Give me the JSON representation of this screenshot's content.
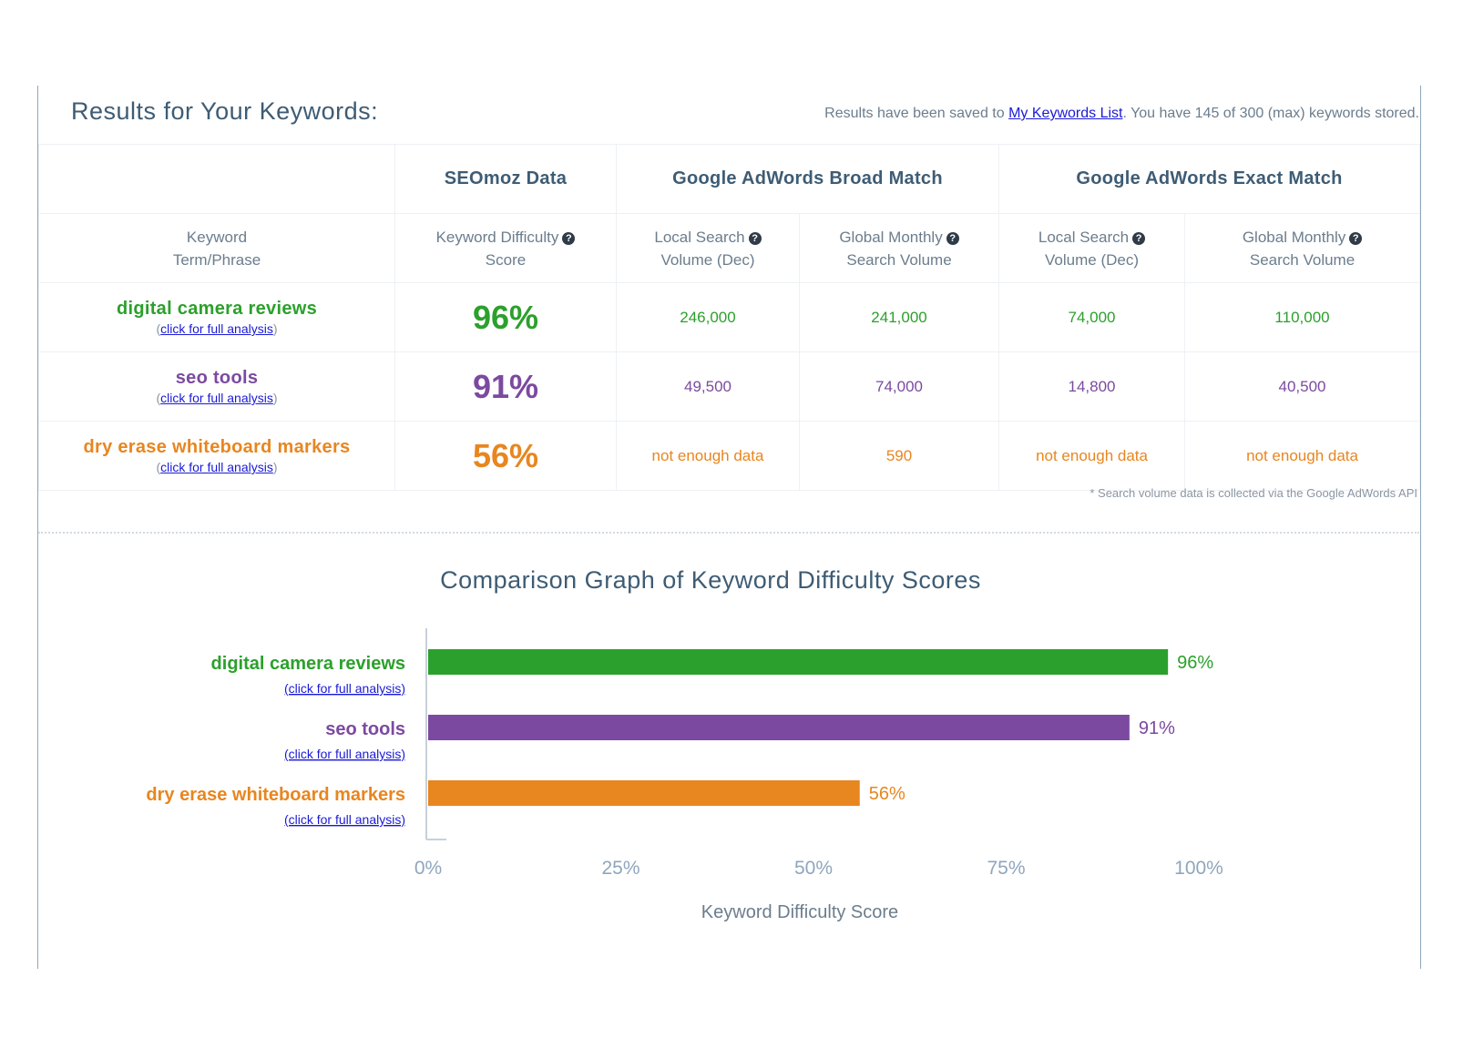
{
  "header": {
    "title": "Results for Your Keywords:",
    "saved_prefix": "Results have been saved to",
    "saved_link": "My Keywords List",
    "saved_suffix": ". You have 145 of 300 (max) keywords stored."
  },
  "table": {
    "groups": [
      "SEOmoz Data",
      "Google AdWords Broad Match",
      "Google AdWords Exact Match"
    ],
    "columns": {
      "keyword": [
        "Keyword",
        "Term/Phrase"
      ],
      "difficulty": [
        "Keyword Difficulty",
        "Score"
      ],
      "broad_local": [
        "Local Search",
        "Volume (Dec)"
      ],
      "broad_global": [
        "Global Monthly",
        "Search Volume"
      ],
      "exact_local": [
        "Local Search",
        "Volume (Dec)"
      ],
      "exact_global": [
        "Global Monthly",
        "Search Volume"
      ]
    },
    "help_icon_glyph": "?",
    "analysis_link": "click for full analysis",
    "rows": [
      {
        "keyword": "digital camera reviews",
        "score": "96%",
        "broad_local": "246,000",
        "broad_global": "241,000",
        "exact_local": "74,000",
        "exact_global": "110,000",
        "color": "#2ca02c"
      },
      {
        "keyword": "seo tools",
        "score": "91%",
        "broad_local": "49,500",
        "broad_global": "74,000",
        "exact_local": "14,800",
        "exact_global": "40,500",
        "color": "#7b4aa0"
      },
      {
        "keyword": "dry erase whiteboard markers",
        "score": "56%",
        "broad_local": "not enough data",
        "broad_global": "590",
        "exact_local": "not enough data",
        "exact_global": "not enough data",
        "color": "#e8861f"
      }
    ],
    "footnote": "* Search volume data is collected via the Google AdWords API"
  },
  "graph": {
    "title": "Comparison Graph of Keyword Difficulty Scores"
  },
  "chart_data": {
    "type": "bar",
    "orientation": "horizontal",
    "categories": [
      "digital camera reviews",
      "seo tools",
      "dry erase whiteboard markers"
    ],
    "values": [
      96,
      91,
      56
    ],
    "value_labels": [
      "96%",
      "91%",
      "56%"
    ],
    "colors": [
      "#2ca02c",
      "#7b4aa0",
      "#e8861f"
    ],
    "category_sublabel": "click for full analysis",
    "xlabel": "Keyword Difficulty Score",
    "xlim": [
      0,
      100
    ],
    "xticks": [
      0,
      25,
      50,
      75,
      100
    ],
    "xtick_labels": [
      "0%",
      "25%",
      "50%",
      "75%",
      "100%"
    ],
    "grid": false
  }
}
